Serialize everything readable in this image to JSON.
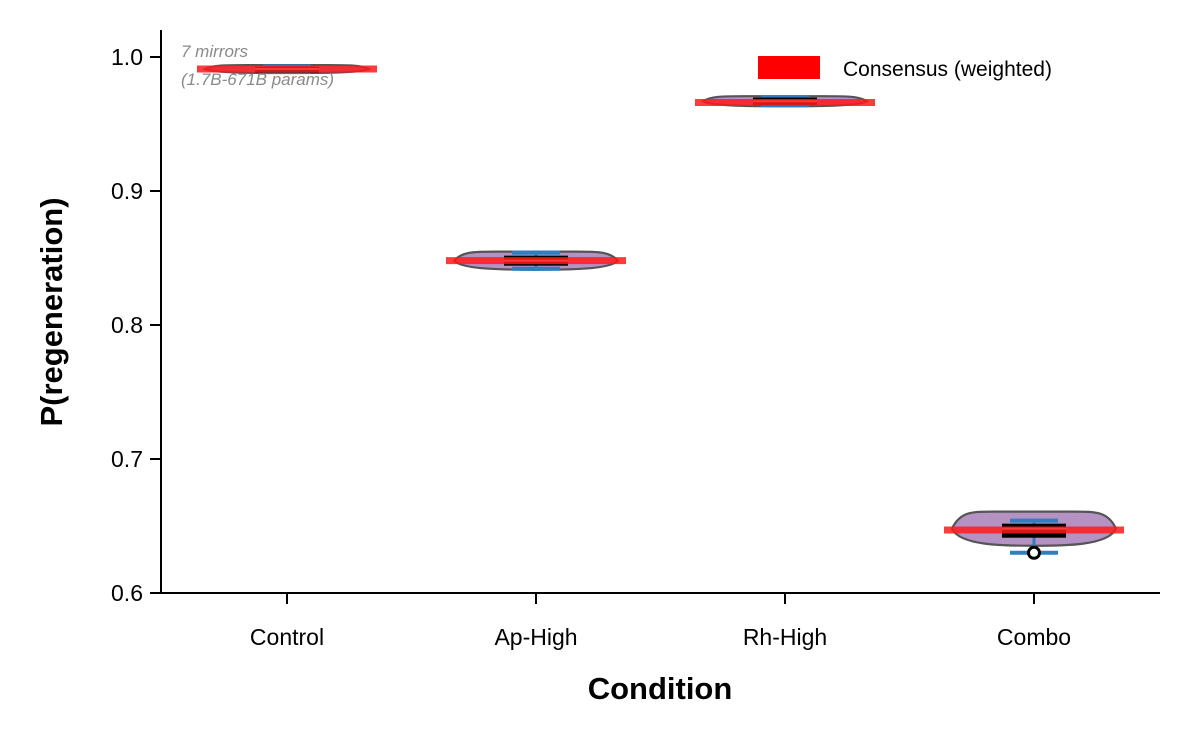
{
  "chart_data": {
    "type": "violin",
    "xlabel": "Condition",
    "ylabel": "P(regeneration)",
    "ylim": [
      0.6,
      1.02
    ],
    "yticks": [
      "0.6",
      "0.7",
      "0.8",
      "0.9",
      "1.0"
    ],
    "categories": [
      "Control",
      "Ap-High",
      "Rh-High",
      "Combo"
    ],
    "annotation": [
      "7 mirrors",
      "(1.7B-671B params)"
    ],
    "legend": {
      "label": "Consensus (weighted)",
      "position": "top-right"
    },
    "consensus": [
      0.991,
      0.848,
      0.966,
      0.647
    ],
    "distributions": [
      {
        "min": 0.989,
        "q1": 0.99,
        "median": 0.991,
        "q3": 0.992,
        "max": 0.993,
        "outliers": []
      },
      {
        "min": 0.842,
        "q1": 0.845,
        "median": 0.848,
        "q3": 0.851,
        "max": 0.854,
        "outliers": []
      },
      {
        "min": 0.964,
        "q1": 0.965,
        "median": 0.967,
        "q3": 0.969,
        "max": 0.97,
        "outliers": []
      },
      {
        "min": 0.63,
        "q1": 0.642,
        "median": 0.648,
        "q3": 0.651,
        "max": 0.654,
        "outliers": [
          0.63
        ]
      }
    ],
    "grid": false,
    "colors": {
      "violin_fill": "#9b6fb0",
      "violin_edge": "#555555",
      "whisker": "#2e7fc1",
      "box": "#000000",
      "median": "#e8e8e8",
      "consensus": "#ff1a1a",
      "legend_patch": "#ff0000",
      "annotation": "#8a8a8a"
    }
  }
}
